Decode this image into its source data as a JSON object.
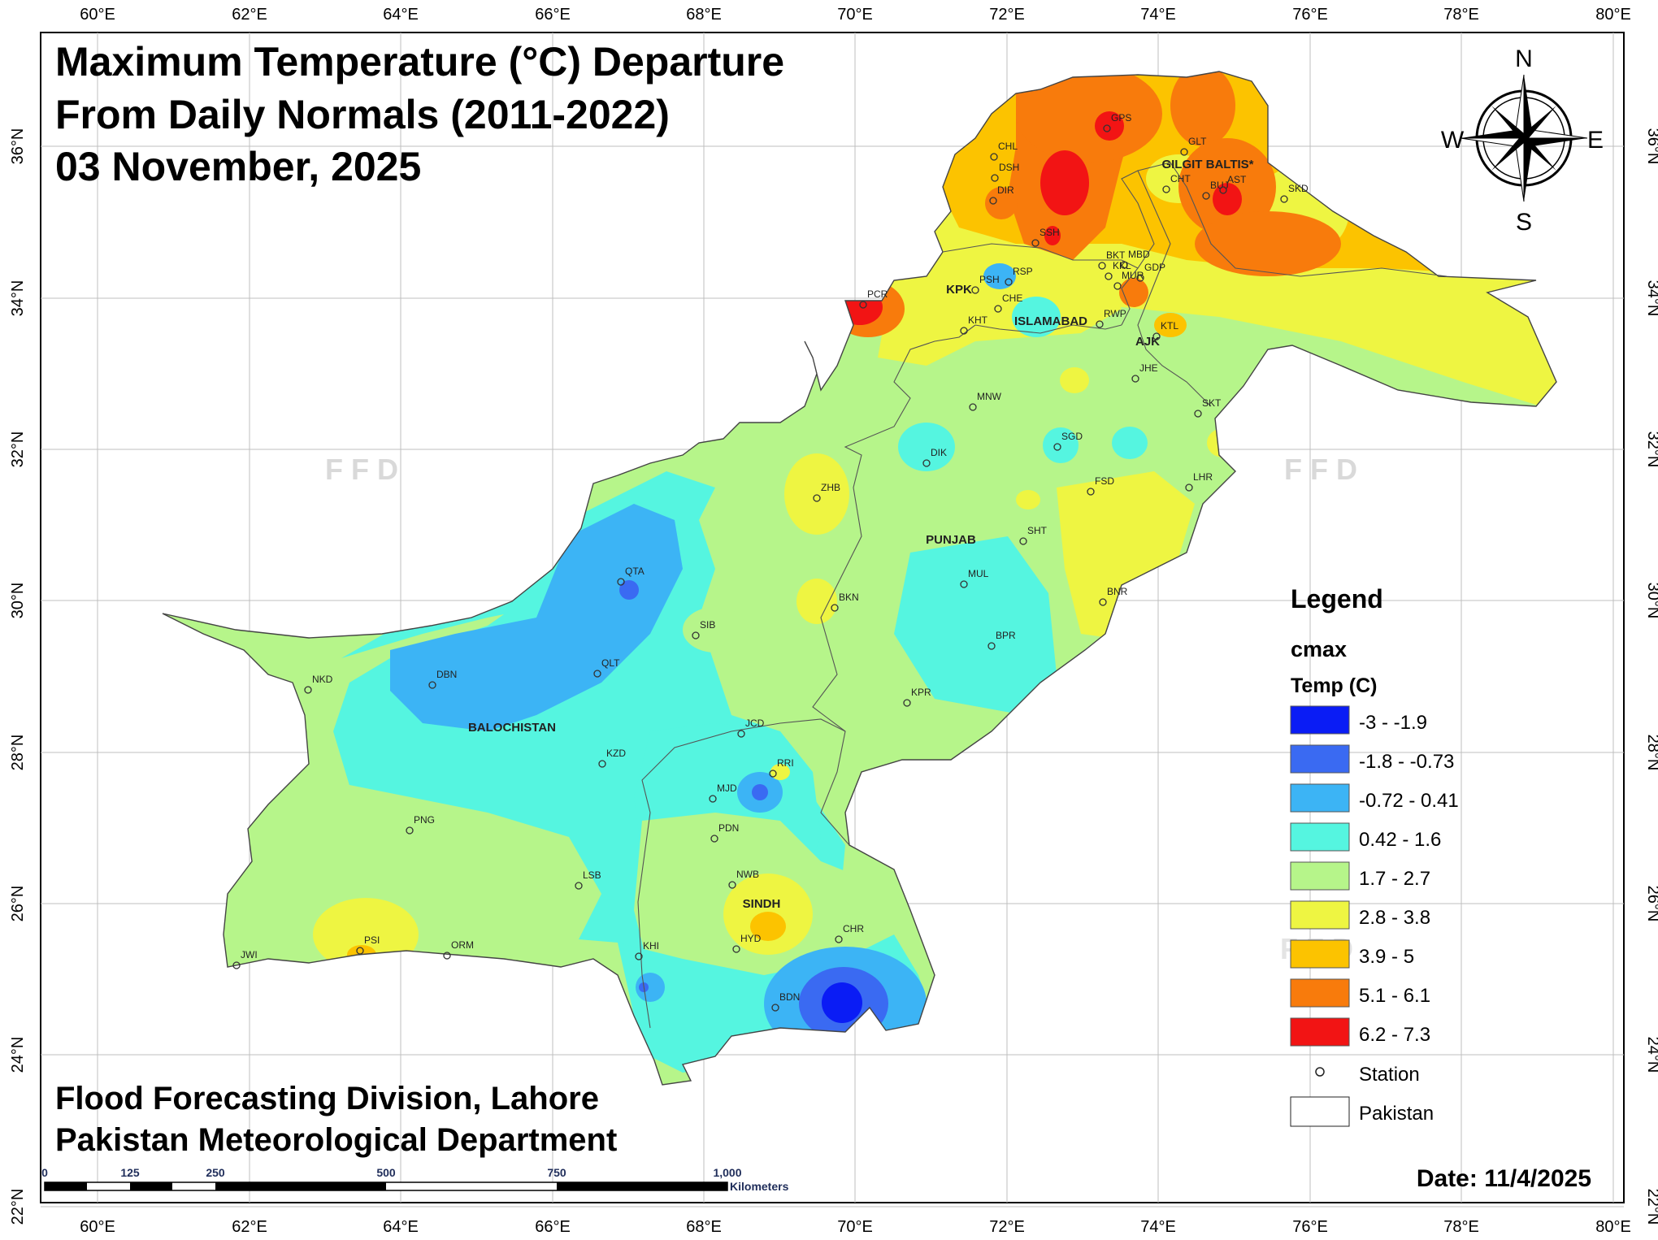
{
  "title": {
    "line1": "Maximum Temperature (°C) Departure",
    "line2": "From Daily Normals (2011-2022)",
    "line3": "03 November, 2025"
  },
  "credits": {
    "line1": "Flood Forecasting Division, Lahore",
    "line2": "Pakistan Meteorological Department"
  },
  "date_text": "Date: 11/4/2025",
  "watermark": "F F D",
  "graticule": {
    "lon_labels": [
      "60°E",
      "62°E",
      "64°E",
      "66°E",
      "68°E",
      "70°E",
      "72°E",
      "74°E",
      "76°E",
      "78°E",
      "80°E"
    ],
    "lat_labels": [
      "36°N",
      "34°N",
      "32°N",
      "30°N",
      "28°N",
      "26°N",
      "24°N",
      "22°N"
    ]
  },
  "compass": {
    "n": "N",
    "s": "S",
    "e": "E",
    "w": "W"
  },
  "scale_bar": {
    "ticks": [
      "0",
      "125",
      "250",
      "500",
      "750",
      "1,000"
    ],
    "unit": "Kilometers"
  },
  "legend": {
    "title": "Legend",
    "field": "cmax",
    "subtitle": "Temp (C)",
    "classes": [
      {
        "label": "-3 - -1.9",
        "color": "#0a1cf5"
      },
      {
        "label": "-1.8 - -0.73",
        "color": "#3a6af2"
      },
      {
        "label": "-0.72 - 0.41",
        "color": "#3cb4f5"
      },
      {
        "label": "0.42 - 1.6",
        "color": "#55f5e0"
      },
      {
        "label": "1.7 - 2.7",
        "color": "#b6f58a"
      },
      {
        "label": "2.8 - 3.8",
        "color": "#eef542"
      },
      {
        "label": "3.9 - 5",
        "color": "#fcc300"
      },
      {
        "label": "5.1 - 6.1",
        "color": "#f87b0c"
      },
      {
        "label": "6.2 - 7.3",
        "color": "#f21414"
      }
    ],
    "station_label": "Station",
    "boundary_label": "Pakistan"
  },
  "regions": [
    "BALOCHISTAN",
    "SINDH",
    "PUNJAB",
    "KPK",
    "ISLAMABAD",
    "AJK",
    "GILGIT BALTIS*"
  ],
  "stations": [
    "CHL",
    "DSH",
    "DIR",
    "SSH",
    "GPS",
    "GLT",
    "CHT",
    "BUJ",
    "AST",
    "SKD",
    "BKT",
    "MBD",
    "KKL",
    "GDP",
    "MUR",
    "RSP",
    "PSH",
    "CHE",
    "KHT",
    "RWP",
    "PCR",
    "KTL",
    "JHE",
    "SKT",
    "MNW",
    "DIK",
    "SGD",
    "LHR",
    "FSD",
    "ZHB",
    "SHT",
    "QTA",
    "MUL",
    "BKN",
    "BNR",
    "SIB",
    "BPR",
    "NKD",
    "DBN",
    "QLT",
    "KPR",
    "JCD",
    "KZD",
    "RRI",
    "MJD",
    "PNG",
    "PDN",
    "LSB",
    "NWB",
    "PSI",
    "HYD",
    "CHR",
    "JWI",
    "ORM",
    "KHI",
    "BDN"
  ]
}
